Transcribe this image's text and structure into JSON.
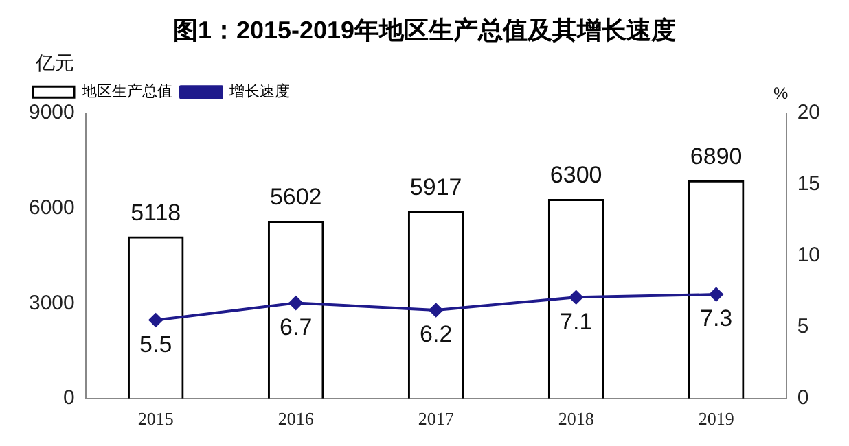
{
  "chart_data": {
    "type": "bar",
    "title": "图1：2015-2019年地区生产总值及其增长速度",
    "ylabel": "亿元",
    "y2label": "%",
    "categories": [
      "2015",
      "2016",
      "2017",
      "2018",
      "2019"
    ],
    "series": [
      {
        "name": "地区生产总值",
        "color": "#000000",
        "values": [
          5118,
          5602,
          5917,
          6300,
          6890
        ]
      },
      {
        "name": "增长速度",
        "type": "line",
        "axis": "y2",
        "color": "#1f1a8c",
        "marker": "diamond",
        "values": [
          5.5,
          6.7,
          6.2,
          7.1,
          7.3
        ]
      }
    ],
    "ylim": [
      0,
      9000
    ],
    "yticks": [
      0,
      3000,
      6000,
      9000
    ],
    "y2lim": [
      0,
      20
    ],
    "y2ticks": [
      0,
      5,
      10,
      15,
      20
    ],
    "grid": false,
    "legend": "top left",
    "data_labels": true
  }
}
